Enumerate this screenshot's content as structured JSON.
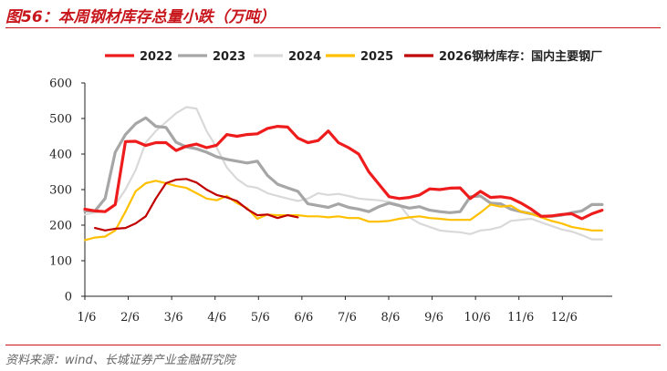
{
  "figure": {
    "title": "图56：本周钢材库存总量小跌（万吨）",
    "source": "资料来源：wind、长城证券产业金融研究院"
  },
  "chart_data": {
    "type": "line",
    "xlabel": "",
    "ylabel": "",
    "ylim": [
      0,
      600
    ],
    "yticks": [
      0,
      100,
      200,
      300,
      400,
      500,
      600
    ],
    "xticks": [
      "1/6",
      "2/6",
      "3/6",
      "4/6",
      "5/6",
      "6/6",
      "7/6",
      "8/6",
      "9/6",
      "10/6",
      "11/6",
      "12/6"
    ],
    "x_week_range": [
      0,
      52
    ],
    "grid": false,
    "legend": "top",
    "series": [
      {
        "name": "2022",
        "color": "#ee1c1c",
        "width": 3.2,
        "weeks": [
          0,
          1,
          2,
          3,
          4,
          5,
          6,
          7,
          8,
          9,
          10,
          11,
          12,
          13,
          14,
          15,
          16,
          17,
          18,
          19,
          20,
          21,
          22,
          23,
          24,
          25,
          26,
          27,
          28,
          29,
          30,
          31,
          32,
          33,
          34,
          35,
          36,
          37,
          38,
          39,
          40,
          41,
          42,
          43,
          44,
          45,
          46,
          47,
          48,
          49,
          50,
          51
        ],
        "values": [
          245,
          240,
          238,
          258,
          435,
          436,
          424,
          432,
          432,
          410,
          422,
          428,
          418,
          425,
          455,
          450,
          455,
          457,
          472,
          478,
          476,
          445,
          432,
          438,
          465,
          432,
          418,
          400,
          350,
          315,
          280,
          275,
          278,
          285,
          302,
          300,
          304,
          305,
          275,
          295,
          278,
          280,
          276,
          262,
          245,
          225,
          226,
          230,
          232,
          218,
          232,
          242
        ]
      },
      {
        "name": "2023",
        "color": "#a6a6a6",
        "width": 3.2,
        "weeks": [
          0,
          1,
          2,
          3,
          4,
          5,
          6,
          7,
          8,
          9,
          10,
          11,
          12,
          13,
          14,
          15,
          16,
          17,
          18,
          19,
          20,
          21,
          22,
          23,
          24,
          25,
          26,
          27,
          28,
          29,
          30,
          31,
          32,
          33,
          34,
          35,
          36,
          37,
          38,
          39,
          40,
          41,
          42,
          43,
          44,
          45,
          46,
          47,
          48,
          49,
          50,
          51
        ],
        "values": [
          240,
          240,
          275,
          405,
          455,
          485,
          502,
          478,
          475,
          433,
          420,
          415,
          405,
          392,
          385,
          380,
          375,
          380,
          340,
          315,
          305,
          295,
          260,
          255,
          250,
          260,
          250,
          245,
          238,
          252,
          262,
          255,
          248,
          252,
          242,
          238,
          235,
          238,
          280,
          282,
          262,
          260,
          245,
          238,
          232,
          225,
          225,
          228,
          235,
          240,
          258,
          258
        ]
      },
      {
        "name": "2024",
        "color": "#d9d9d9",
        "width": 2.2,
        "weeks": [
          0,
          1,
          2,
          3,
          4,
          5,
          6,
          7,
          8,
          9,
          10,
          11,
          12,
          13,
          14,
          15,
          16,
          17,
          18,
          19,
          20,
          21,
          22,
          23,
          24,
          25,
          26,
          27,
          28,
          29,
          30,
          31,
          32,
          33,
          34,
          35,
          36,
          37,
          38,
          39,
          40,
          41,
          42,
          43,
          44,
          45,
          46,
          47,
          48,
          49,
          50,
          51
        ],
        "values": [
          230,
          235,
          240,
          258,
          300,
          355,
          432,
          465,
          490,
          515,
          532,
          528,
          465,
          418,
          362,
          330,
          310,
          305,
          290,
          282,
          275,
          268,
          275,
          290,
          285,
          288,
          282,
          275,
          272,
          270,
          265,
          258,
          222,
          205,
          195,
          185,
          182,
          180,
          175,
          185,
          188,
          195,
          212,
          215,
          218,
          208,
          198,
          188,
          182,
          172,
          160,
          160
        ]
      },
      {
        "name": "2025",
        "color": "#ffc000",
        "width": 2.2,
        "weeks": [
          0,
          1,
          2,
          3,
          4,
          5,
          6,
          7,
          8,
          9,
          10,
          11,
          12,
          13,
          14,
          15,
          16,
          17,
          18,
          19,
          20,
          21,
          22,
          23,
          24,
          25,
          26,
          27,
          28,
          29,
          30,
          31,
          32,
          33,
          34,
          35,
          36,
          37,
          38,
          39,
          40,
          41,
          42,
          43,
          44,
          45,
          46,
          47,
          48,
          49,
          50,
          51
        ],
        "values": [
          158,
          165,
          168,
          185,
          238,
          295,
          318,
          325,
          318,
          310,
          305,
          290,
          275,
          270,
          282,
          262,
          248,
          218,
          230,
          228,
          228,
          228,
          225,
          225,
          222,
          225,
          220,
          220,
          210,
          210,
          212,
          218,
          222,
          225,
          220,
          218,
          215,
          215,
          215,
          235,
          258,
          252,
          255,
          238,
          232,
          222,
          212,
          205,
          195,
          190,
          185,
          185
        ]
      },
      {
        "name": "2026钢材库存：国内主要钢厂",
        "color": "#c00000",
        "width": 2.2,
        "weeks": [
          1,
          2,
          3,
          4,
          5,
          6,
          7,
          8,
          9,
          10,
          11,
          12,
          13,
          14,
          15,
          16,
          17,
          18,
          19,
          20,
          21
        ],
        "values": [
          192,
          185,
          190,
          192,
          205,
          225,
          275,
          318,
          328,
          330,
          320,
          300,
          285,
          278,
          268,
          245,
          228,
          230,
          220,
          228,
          222
        ]
      }
    ]
  }
}
